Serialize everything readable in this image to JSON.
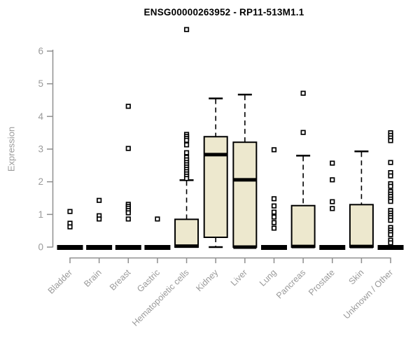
{
  "title": "ENSG00000263952 - RP11-513M1.1",
  "chart_data": {
    "type": "boxplot",
    "title": "ENSG00000263952 - RP11-513M1.1",
    "xlabel": "",
    "ylabel": "Expression",
    "ylim": [
      0,
      6
    ],
    "yticks": [
      0,
      1,
      2,
      3,
      4,
      5,
      6
    ],
    "x_tick_rotation": 45,
    "grid": false,
    "legend": false,
    "categories": [
      "Bladder",
      "Brain",
      "Breast",
      "Gastric",
      "Hematopoietic cells",
      "Kidney",
      "Liver",
      "Lung",
      "Pancreas",
      "Prostate",
      "Skin",
      "Unknown / Other"
    ],
    "boxes": [
      {
        "label": "Bladder",
        "collapsed": true,
        "median": 0,
        "outliers": [
          1.09,
          0.73,
          0.62
        ]
      },
      {
        "label": "Brain",
        "collapsed": true,
        "median": 0,
        "outliers": [
          1.43,
          0.96,
          0.86
        ]
      },
      {
        "label": "Breast",
        "collapsed": true,
        "median": 0,
        "outliers": [
          4.31,
          3.02,
          1.31,
          1.25,
          1.19,
          1.12,
          1.05,
          0.86
        ]
      },
      {
        "label": "Gastric",
        "collapsed": true,
        "median": 0,
        "outliers": [
          0.86
        ]
      },
      {
        "label": "Hematopoietic cells",
        "collapsed": false,
        "q1": 0,
        "median": 0.03,
        "q3": 0.85,
        "whisker_high": 2.05,
        "whisker_low": null,
        "outliers": [
          6.66,
          3.45,
          3.39,
          3.33,
          3.27,
          3.13,
          2.89,
          2.75,
          2.67,
          2.59,
          2.52,
          2.45,
          2.38,
          2.31,
          2.24,
          2.17,
          2.1
        ]
      },
      {
        "label": "Kidney",
        "collapsed": false,
        "q1": 0.3,
        "median": 2.83,
        "q3": 3.38,
        "whisker_high": 4.55,
        "whisker_low": 0,
        "outliers": []
      },
      {
        "label": "Liver",
        "collapsed": false,
        "q1": 0,
        "median": 2.06,
        "q3": 3.21,
        "whisker_high": 4.67,
        "whisker_low": null,
        "zero_bar": true,
        "outliers": []
      },
      {
        "label": "Lung",
        "collapsed": true,
        "median": 0,
        "outliers": [
          2.98,
          1.48,
          1.26,
          1.07,
          0.92,
          0.75,
          0.58
        ]
      },
      {
        "label": "Pancreas",
        "collapsed": false,
        "q1": 0,
        "median": 0.02,
        "q3": 1.27,
        "whisker_high": 2.8,
        "whisker_low": null,
        "outliers": [
          4.71,
          3.51
        ]
      },
      {
        "label": "Prostate",
        "collapsed": true,
        "median": 0,
        "outliers": [
          2.57,
          2.06,
          1.39,
          1.18
        ]
      },
      {
        "label": "Skin",
        "collapsed": false,
        "q1": 0,
        "median": 0.02,
        "q3": 1.3,
        "whisker_high": 2.93,
        "whisker_low": null,
        "outliers": []
      },
      {
        "label": "Unknown / Other",
        "collapsed": true,
        "median": 0,
        "outliers": [
          3.5,
          3.42,
          3.34,
          3.26,
          2.59,
          2.28,
          2.18,
          1.94,
          1.86,
          1.7,
          1.62,
          1.55,
          1.47,
          1.4,
          1.12,
          1.04,
          0.97,
          0.9,
          0.82,
          0.6,
          0.52,
          0.45,
          0.38,
          0.21,
          0.13
        ]
      }
    ],
    "colors": {
      "box_fill": "#EDE8CE",
      "box_stroke": "#000000",
      "axis": "#8f8f8f",
      "tick_label": "#9a9a9a",
      "title": "#000000",
      "background": "#ffffff"
    }
  }
}
